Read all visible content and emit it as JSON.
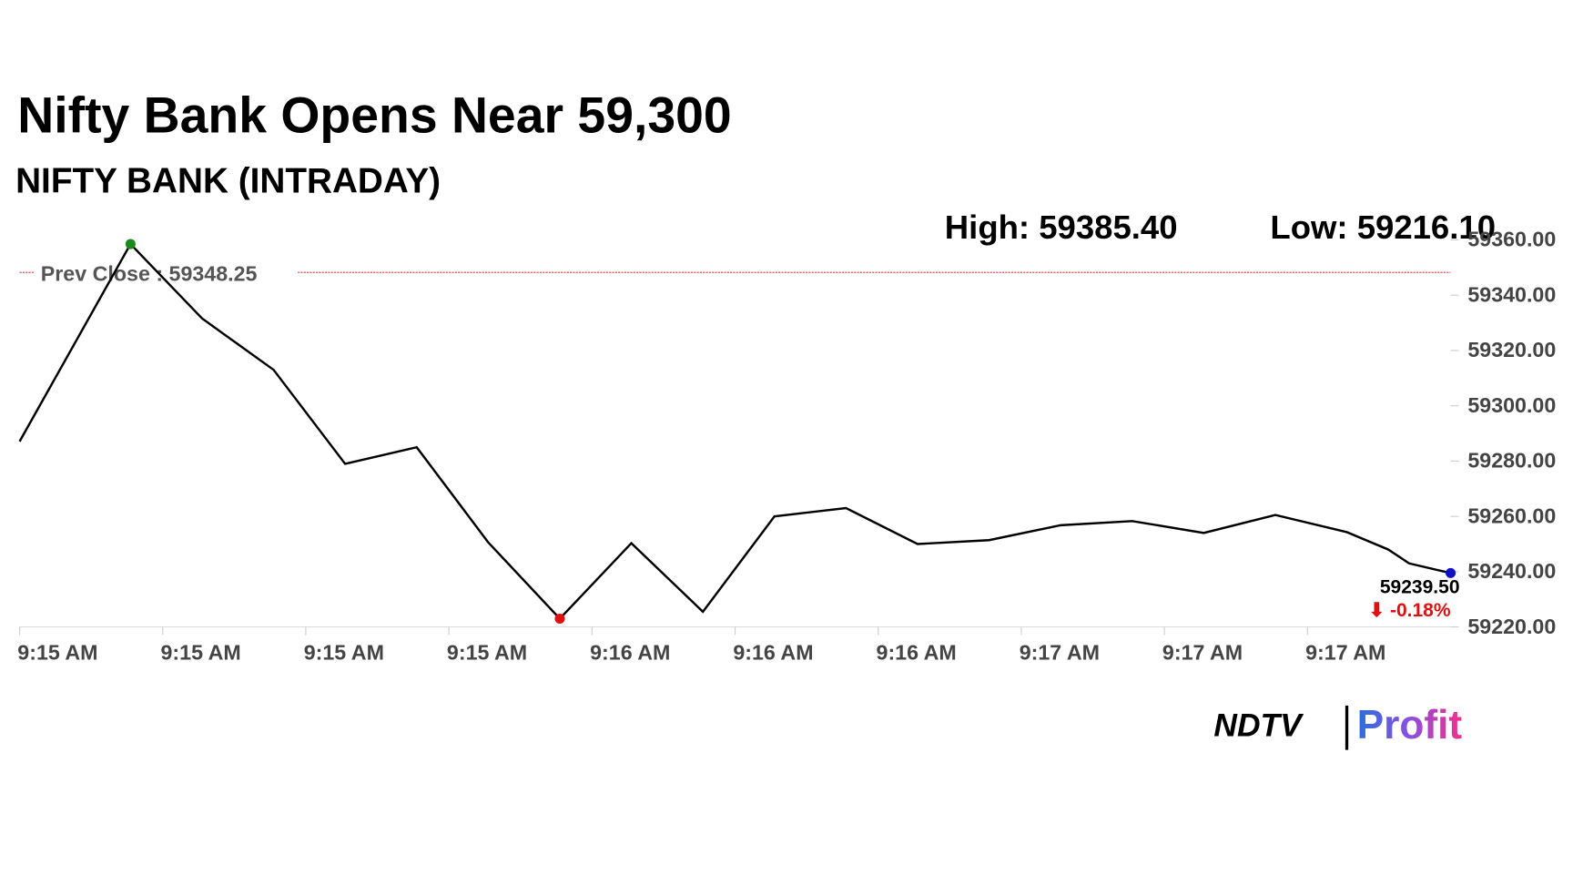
{
  "chart_data": {
    "type": "line",
    "title": "Nifty Bank Opens Near 59,300",
    "subtitle": "NIFTY BANK (INTRADAY)",
    "high_label": "High: 59385.40",
    "low_label": "Low: 59216.10",
    "x": [
      0,
      1.55,
      2.55,
      3.55,
      4.55,
      5.55,
      6.55,
      7.55,
      8.55,
      9.55,
      10.55,
      11.55,
      12.55,
      13.55,
      14.55,
      15.55,
      16.55,
      17.55,
      18.55,
      19.13,
      19.42,
      20
    ],
    "series": [
      {
        "name": "NIFTY BANK",
        "color": "#000000",
        "values": [
          59287.1,
          59358.5,
          59331.6,
          59313,
          59279,
          59285,
          59250.6,
          59223,
          59250.3,
          59225.5,
          59260,
          59263,
          59250,
          59251.4,
          59256.8,
          59258.3,
          59254,
          59260.5,
          59254.3,
          59248,
          59243,
          59239.5
        ]
      }
    ],
    "high_color": "#1a8a1a",
    "low_color": "#e01010",
    "last_color": "#1010c8",
    "prev_close": {
      "value": 59348.25,
      "label": "Prev Close : 59348.25",
      "color": "#d04040"
    },
    "last_label": "59239.50",
    "change_label": "⬇ -0.18%",
    "change_color": "#e01010",
    "xlim": [
      0,
      20
    ],
    "xticks": [
      {
        "value": 0,
        "label": "9:15 AM"
      },
      {
        "value": 2,
        "label": "9:15 AM"
      },
      {
        "value": 4,
        "label": "9:15 AM"
      },
      {
        "value": 6,
        "label": "9:15 AM"
      },
      {
        "value": 8,
        "label": "9:16 AM"
      },
      {
        "value": 10,
        "label": "9:16 AM"
      },
      {
        "value": 12,
        "label": "9:16 AM"
      },
      {
        "value": 14,
        "label": "9:17 AM"
      },
      {
        "value": 16,
        "label": "9:17 AM"
      },
      {
        "value": 18,
        "label": "9:17 AM"
      }
    ],
    "ylim": [
      59220,
      59360
    ],
    "yticks": [
      {
        "value": 59220,
        "label": "59220.00"
      },
      {
        "value": 59240,
        "label": "59240.00"
      },
      {
        "value": 59260,
        "label": "59260.00"
      },
      {
        "value": 59280,
        "label": "59280.00"
      },
      {
        "value": 59300,
        "label": "59300.00"
      },
      {
        "value": 59320,
        "label": "59320.00"
      },
      {
        "value": 59340,
        "label": "59340.00"
      },
      {
        "value": 59360,
        "label": "59360.00"
      }
    ],
    "logo": {
      "left": "NDTV",
      "right": "Profit"
    }
  }
}
